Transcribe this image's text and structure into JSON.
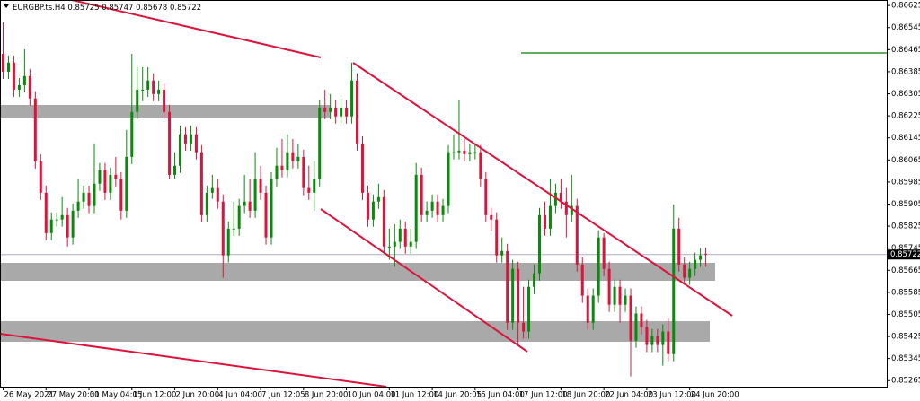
{
  "chart_data": {
    "type": "candlestick",
    "title": "EURGBP.ts.H4",
    "up_color": "#0a8a0a",
    "down_color": "#dc143c",
    "grid": false,
    "ylim": [
      0.85243,
      0.86645
    ],
    "yticks": [
      0.86625,
      0.86545,
      0.86465,
      0.86385,
      0.86305,
      0.86225,
      0.86145,
      0.86065,
      0.85985,
      0.85905,
      0.85825,
      0.85745,
      0.85665,
      0.85585,
      0.85505,
      0.85425,
      0.85345,
      0.85265
    ],
    "categories": [
      "26 May 2021",
      null,
      null,
      null,
      null,
      null,
      null,
      null,
      "27 May 20:00",
      null,
      null,
      null,
      null,
      null,
      null,
      null,
      "31 May 04:05",
      null,
      null,
      null,
      null,
      null,
      null,
      null,
      "1 Jun 12:00",
      null,
      null,
      null,
      null,
      null,
      null,
      null,
      "2 Jun 20:00",
      null,
      null,
      null,
      null,
      null,
      null,
      null,
      "4 Jun 04:00",
      null,
      null,
      null,
      null,
      null,
      null,
      null,
      "7 Jun 12:05",
      null,
      null,
      null,
      null,
      null,
      null,
      null,
      "8 Jun 20:00",
      null,
      null,
      null,
      null,
      null,
      null,
      null,
      "10 Jun 04:00",
      null,
      null,
      null,
      null,
      null,
      null,
      null,
      "11 Jun 12:00",
      null,
      null,
      null,
      null,
      null,
      null,
      null,
      "14 Jun 20:05",
      null,
      null,
      null,
      null,
      null,
      null,
      null,
      "16 Jun 04:00",
      null,
      null,
      null,
      null,
      null,
      null,
      null,
      "17 Jun 12:00",
      null,
      null,
      null,
      null,
      null,
      null,
      null,
      "18 Jun 20:00",
      null,
      null,
      null,
      null,
      null,
      null,
      null,
      "22 Jun 04:00",
      null,
      null,
      null,
      null,
      null,
      null,
      null,
      "23 Jun 12:00",
      null,
      null,
      null,
      null,
      null,
      null,
      null,
      "24 Jun 20:00",
      null,
      null,
      null
    ],
    "open": [
      0.8645,
      0.86385,
      0.86418,
      0.8632,
      0.86336,
      0.86369,
      0.86288,
      0.8606,
      0.85946,
      0.858,
      0.85849,
      0.85849,
      0.85865,
      0.85784,
      0.85881,
      0.85914,
      0.85946,
      0.85898,
      0.85979,
      0.86028,
      0.85946,
      0.86011,
      0.85995,
      0.85881,
      0.86076,
      0.86239,
      0.8632,
      0.8632,
      0.86353,
      0.86304,
      0.8632,
      0.86239,
      0.86011,
      0.86044,
      0.86158,
      0.86125,
      0.86158,
      0.86093,
      0.85865,
      0.85946,
      0.85963,
      0.85914,
      0.85719,
      0.85816,
      0.85816,
      0.85898,
      0.85914,
      0.85881,
      0.85995,
      0.85946,
      0.85784,
      0.85995,
      0.86044,
      0.86028,
      0.86093,
      0.8606,
      0.86076,
      0.85963,
      0.85946,
      0.85995,
      0.86255,
      0.86239,
      0.86255,
      0.86223,
      0.86255,
      0.86223,
      0.86353,
      0.86125,
      0.85946,
      0.85849,
      0.85914,
      0.8593,
      0.85751,
      0.85751,
      0.85768,
      0.85816,
      0.85751,
      0.85768,
      0.86011,
      0.85865,
      0.85881,
      0.85914,
      0.85865,
      0.85898,
      0.86093,
      0.86093,
      0.86099,
      0.86086,
      0.86093,
      0.86093,
      0.85995,
      0.85865,
      0.85849,
      0.85719,
      0.85735,
      0.85475,
      0.8567,
      0.85475,
      0.85443,
      0.85605,
      0.85654,
      0.85865,
      0.85816,
      0.85898,
      0.85946,
      0.85914,
      0.85865,
      0.85898,
      0.85686,
      0.85573,
      0.85475,
      0.85573,
      0.85784,
      0.8567,
      0.8554,
      0.85605,
      0.8554,
      0.85573,
      0.8541,
      0.85508,
      0.85459,
      0.85394,
      0.85426,
      0.85394,
      0.85443,
      0.85361,
      0.85816,
      0.85686,
      0.85638,
      0.8567,
      0.85703,
      0.85725
    ],
    "high": [
      0.86564,
      0.86444,
      0.86444,
      0.86362,
      0.86466,
      0.86395,
      0.86314,
      0.86086,
      0.85972,
      0.85875,
      0.85875,
      0.8593,
      0.85891,
      0.85907,
      0.85995,
      0.85972,
      0.85972,
      0.86125,
      0.86054,
      0.86054,
      0.86037,
      0.86076,
      0.86021,
      0.86174,
      0.8645,
      0.86401,
      0.86401,
      0.86401,
      0.86379,
      0.86353,
      0.86346,
      0.86265,
      0.86093,
      0.8619,
      0.86184,
      0.8619,
      0.86184,
      0.86119,
      0.85972,
      0.86011,
      0.85995,
      0.8594,
      0.85842,
      0.85914,
      0.85924,
      0.86011,
      0.85995,
      0.86093,
      0.86044,
      0.85972,
      0.86021,
      0.86109,
      0.86141,
      0.86158,
      0.86141,
      0.86125,
      0.86102,
      0.86044,
      0.8606,
      0.86281,
      0.8632,
      0.86304,
      0.86281,
      0.86288,
      0.86281,
      0.86418,
      0.86379,
      0.86151,
      0.85972,
      0.8594,
      0.85979,
      0.85956,
      0.85816,
      0.85832,
      0.85849,
      0.85842,
      0.85816,
      0.86054,
      0.86037,
      0.85914,
      0.8594,
      0.8594,
      0.85924,
      0.86119,
      0.86158,
      0.86281,
      0.86141,
      0.86125,
      0.86125,
      0.86119,
      0.86021,
      0.85891,
      0.85875,
      0.85784,
      0.85761,
      0.85703,
      0.85696,
      0.85605,
      0.85631,
      0.85686,
      0.85891,
      0.85914,
      0.85995,
      0.85979,
      0.85995,
      0.85963,
      0.86011,
      0.85924,
      0.85712,
      0.85599,
      0.85599,
      0.8581,
      0.858,
      0.85696,
      0.85631,
      0.85631,
      0.85599,
      0.85599,
      0.85534,
      0.85534,
      0.85485,
      0.85452,
      0.85452,
      0.85469,
      0.85491,
      0.85904,
      0.85855,
      0.85712,
      0.85696,
      0.85729,
      0.85745,
      0.85747
    ],
    "low": [
      0.86359,
      0.86359,
      0.86294,
      0.86294,
      0.8631,
      0.86262,
      0.86034,
      0.8592,
      0.85774,
      0.85774,
      0.85823,
      0.85823,
      0.85751,
      0.85758,
      0.85855,
      0.85888,
      0.85872,
      0.85872,
      0.85953,
      0.8592,
      0.8592,
      0.85969,
      0.85849,
      0.85855,
      0.8605,
      0.86213,
      0.86278,
      0.86294,
      0.86278,
      0.86278,
      0.86213,
      0.85995,
      0.85995,
      0.86018,
      0.86099,
      0.86099,
      0.86067,
      0.85839,
      0.85839,
      0.85924,
      0.85888,
      0.85638,
      0.85693,
      0.8579,
      0.8579,
      0.85872,
      0.85855,
      0.85855,
      0.8592,
      0.85758,
      0.85758,
      0.85969,
      0.86002,
      0.86002,
      0.86034,
      0.86034,
      0.85937,
      0.8592,
      0.85881,
      0.85969,
      0.86213,
      0.86213,
      0.86197,
      0.86197,
      0.86197,
      0.86197,
      0.86099,
      0.8592,
      0.85823,
      0.85823,
      0.85888,
      0.85725,
      0.85703,
      0.85677,
      0.85742,
      0.85725,
      0.85725,
      0.85742,
      0.85839,
      0.85839,
      0.85855,
      0.85839,
      0.85839,
      0.85872,
      0.86067,
      0.86067,
      0.8606,
      0.8606,
      0.86067,
      0.85969,
      0.85839,
      0.85807,
      0.85693,
      0.85693,
      0.85449,
      0.85449,
      0.85394,
      0.85417,
      0.85417,
      0.85579,
      0.85628,
      0.8579,
      0.8579,
      0.85872,
      0.85888,
      0.85784,
      0.85839,
      0.8566,
      0.85547,
      0.85449,
      0.85449,
      0.85547,
      0.85644,
      0.85514,
      0.85514,
      0.85475,
      0.85514,
      0.8528,
      0.85384,
      0.85433,
      0.85368,
      0.85368,
      0.85368,
      0.85319,
      0.85335,
      0.85335,
      0.8566,
      0.85612,
      0.85612,
      0.85644,
      0.85677,
      0.85678
    ],
    "close": [
      0.86385,
      0.86418,
      0.8632,
      0.86336,
      0.86369,
      0.86288,
      0.8606,
      0.85946,
      0.858,
      0.85849,
      0.85849,
      0.85865,
      0.85784,
      0.85881,
      0.85914,
      0.85946,
      0.85898,
      0.85979,
      0.86028,
      0.85946,
      0.86011,
      0.85995,
      0.85881,
      0.86076,
      0.86239,
      0.8632,
      0.8632,
      0.86353,
      0.86304,
      0.8632,
      0.86239,
      0.86011,
      0.86044,
      0.86158,
      0.86125,
      0.86158,
      0.86093,
      0.85865,
      0.85946,
      0.85963,
      0.85914,
      0.85719,
      0.85816,
      0.85816,
      0.85898,
      0.85914,
      0.85881,
      0.85995,
      0.85946,
      0.85784,
      0.85995,
      0.86044,
      0.86028,
      0.86093,
      0.8606,
      0.86076,
      0.85963,
      0.85946,
      0.85995,
      0.86255,
      0.86239,
      0.86255,
      0.86223,
      0.86255,
      0.86223,
      0.86353,
      0.86125,
      0.85946,
      0.85849,
      0.85914,
      0.8593,
      0.85751,
      0.85751,
      0.85768,
      0.85816,
      0.85751,
      0.85768,
      0.86011,
      0.85865,
      0.85881,
      0.85914,
      0.85865,
      0.85898,
      0.86093,
      0.86093,
      0.86099,
      0.86086,
      0.86093,
      0.86093,
      0.85995,
      0.85865,
      0.85849,
      0.85719,
      0.85735,
      0.85475,
      0.8567,
      0.85475,
      0.85443,
      0.85605,
      0.85654,
      0.85865,
      0.85816,
      0.85898,
      0.85946,
      0.85914,
      0.85865,
      0.85898,
      0.85686,
      0.85573,
      0.85475,
      0.85573,
      0.85784,
      0.8567,
      0.8554,
      0.85605,
      0.8554,
      0.85573,
      0.8541,
      0.85508,
      0.85459,
      0.85394,
      0.85426,
      0.85394,
      0.85443,
      0.85361,
      0.85816,
      0.85686,
      0.85638,
      0.8567,
      0.85703,
      0.85719,
      0.85722
    ]
  }
}
